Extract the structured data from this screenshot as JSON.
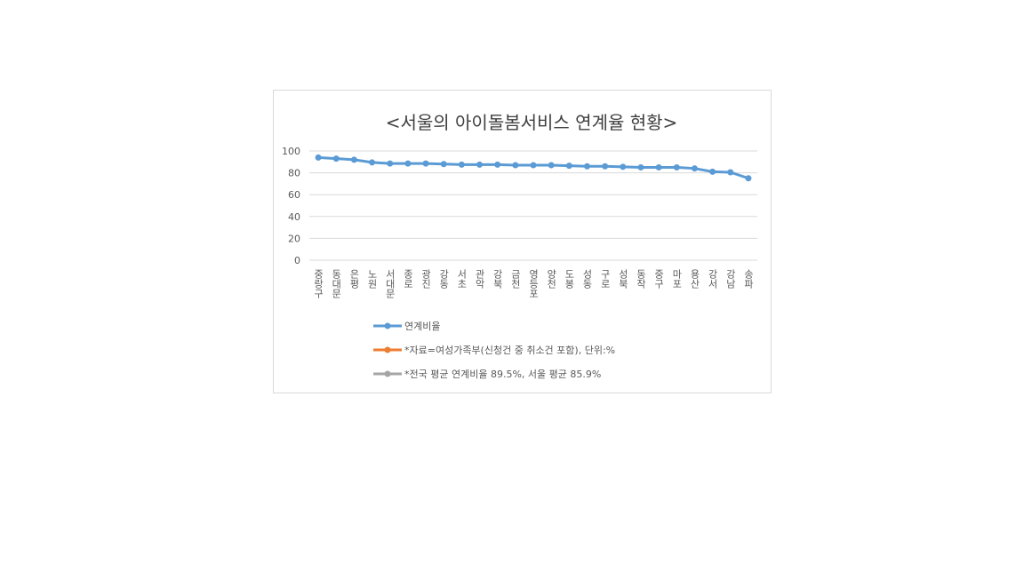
{
  "chart_data": {
    "type": "line",
    "title": "<서울의 아이돌봄서비스 연계율 현황>",
    "categories": [
      "중랑구",
      "동대문",
      "은평",
      "노원",
      "서대문",
      "종로",
      "광진",
      "강동",
      "서초",
      "관악",
      "강북",
      "금천",
      "영등포",
      "양천",
      "도봉",
      "성동",
      "구로",
      "성북",
      "동작",
      "중구",
      "마포",
      "용산",
      "강서",
      "강남",
      "송파"
    ],
    "series": [
      {
        "name": "연계비율",
        "color": "#5b9bd5",
        "values": [
          94,
          93,
          92,
          89.5,
          88.5,
          88.5,
          88.5,
          88,
          87.5,
          87.5,
          87.5,
          87,
          87,
          87,
          86.5,
          86,
          86,
          85.5,
          85,
          85,
          85,
          84,
          81,
          80.5,
          75
        ]
      },
      {
        "name": "*자료=여성가족부(신청건 중 취소건 포함), 단위:%",
        "color": "#ed7d31"
      },
      {
        "name": "*전국 평균 연계비율 89.5%, 서울 평균 85.9%",
        "color": "#a5a5a5"
      }
    ],
    "ylim": [
      0,
      100
    ],
    "yticks": [
      0,
      20,
      40,
      60,
      80,
      100
    ],
    "grid": true
  }
}
